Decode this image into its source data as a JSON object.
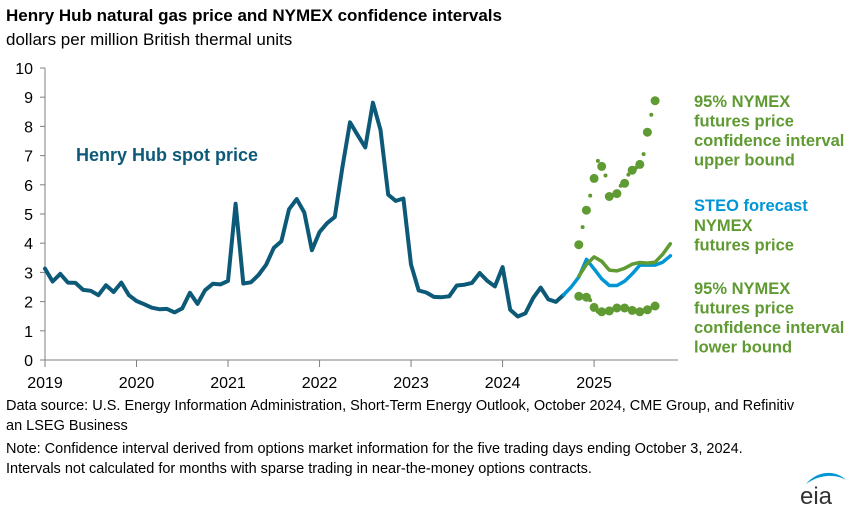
{
  "title": "Henry Hub natural gas price and NYMEX confidence intervals",
  "subtitle": "dollars per million British thermal units",
  "source_note": "Data source: U.S. Energy Information Administration, Short-Term Energy Outlook, October 2024, CME Group, and Refinitiv an LSEG Business",
  "interval_note": "Note: Confidence interval derived from options market information for the five trading days ending October 3, 2024. Intervals not calculated for months with sparse trading in near-the-money options contracts.",
  "logo_text": "eia",
  "colors": {
    "spot": "#0d5a78",
    "forecast": "#0096d6",
    "nymex": "#5f9a32",
    "axis": "#7f7f7f"
  },
  "chart_data": {
    "type": "line",
    "title": "Henry Hub natural gas price and NYMEX confidence intervals",
    "ylabel": "dollars per million British thermal units",
    "ylim": [
      0,
      10
    ],
    "yticks": [
      "0",
      "1",
      "2",
      "3",
      "4",
      "5",
      "6",
      "7",
      "8",
      "9",
      "10"
    ],
    "xlim": [
      2019,
      2025.917
    ],
    "xticks": [
      {
        "value": 2019,
        "label": "2019"
      },
      {
        "value": 2020,
        "label": "2020"
      },
      {
        "value": 2021,
        "label": "2021"
      },
      {
        "value": 2022,
        "label": "2022"
      },
      {
        "value": 2023,
        "label": "2023"
      },
      {
        "value": 2024,
        "label": "2024"
      },
      {
        "value": 2025,
        "label": "2025"
      }
    ],
    "series": [
      {
        "name": "Henry Hub spot price",
        "label_lines": [
          "Henry Hub spot price"
        ],
        "style": "line",
        "x_start": 2019,
        "x_step": 0.08333,
        "values": [
          3.13,
          2.69,
          2.95,
          2.65,
          2.64,
          2.4,
          2.37,
          2.22,
          2.56,
          2.33,
          2.65,
          2.22,
          2.02,
          1.91,
          1.79,
          1.74,
          1.75,
          1.63,
          1.77,
          2.3,
          1.92,
          2.39,
          2.61,
          2.59,
          2.71,
          5.35,
          2.62,
          2.66,
          2.91,
          3.26,
          3.84,
          4.07,
          5.16,
          5.51,
          5.05,
          3.76,
          4.38,
          4.69,
          4.9,
          6.6,
          8.14,
          7.7,
          7.28,
          8.81,
          7.88,
          5.66,
          5.45,
          5.53,
          3.27,
          2.38,
          2.31,
          2.16,
          2.15,
          2.18,
          2.55,
          2.58,
          2.64,
          2.98,
          2.71,
          2.52,
          3.18,
          1.72,
          1.49,
          1.6,
          2.12,
          2.48,
          2.08,
          1.99,
          2.23
        ]
      },
      {
        "name": "STEO forecast",
        "label_lines": [
          "STEO forecast"
        ],
        "style": "line",
        "x_start": 2024.667,
        "x_step": 0.08333,
        "values": [
          2.23,
          2.5,
          2.85,
          3.45,
          3.12,
          2.78,
          2.55,
          2.55,
          2.7,
          2.95,
          3.25,
          3.25,
          3.25,
          3.35,
          3.57
        ]
      },
      {
        "name": "NYMEX futures price",
        "label_lines": [
          "NYMEX",
          "futures price"
        ],
        "style": "line",
        "x_start": 2024.833,
        "x_step": 0.08333,
        "values": [
          2.87,
          3.27,
          3.53,
          3.38,
          3.08,
          3.05,
          3.14,
          3.28,
          3.34,
          3.32,
          3.35,
          3.62,
          3.98
        ]
      },
      {
        "name": "95% NYMEX futures price confidence interval upper bound",
        "label_lines": [
          "95% NYMEX",
          "futures price",
          "confidence interval",
          "upper bound"
        ],
        "style": "dots",
        "x_start": 2024.833,
        "x_step": 0.04167,
        "values": [
          3.95,
          4.55,
          5.13,
          5.63,
          6.22,
          6.82,
          6.63,
          6.32,
          5.6,
          5.65,
          5.7,
          5.97,
          6.05,
          6.35,
          6.5,
          6.58,
          6.7,
          7.05,
          7.8,
          8.4,
          8.88
        ]
      },
      {
        "name": "95% NYMEX futures price confidence interval lower bound",
        "label_lines": [
          "95% NYMEX",
          "futures price",
          "confidence interval",
          "lower bound"
        ],
        "style": "dots",
        "x_start": 2024.833,
        "x_step": 0.04167,
        "values": [
          2.18,
          2.18,
          2.15,
          2.05,
          1.8,
          1.65,
          1.65,
          1.68,
          1.68,
          1.72,
          1.78,
          1.8,
          1.78,
          1.75,
          1.7,
          1.68,
          1.65,
          1.7,
          1.72,
          1.78,
          1.85
        ]
      }
    ]
  }
}
